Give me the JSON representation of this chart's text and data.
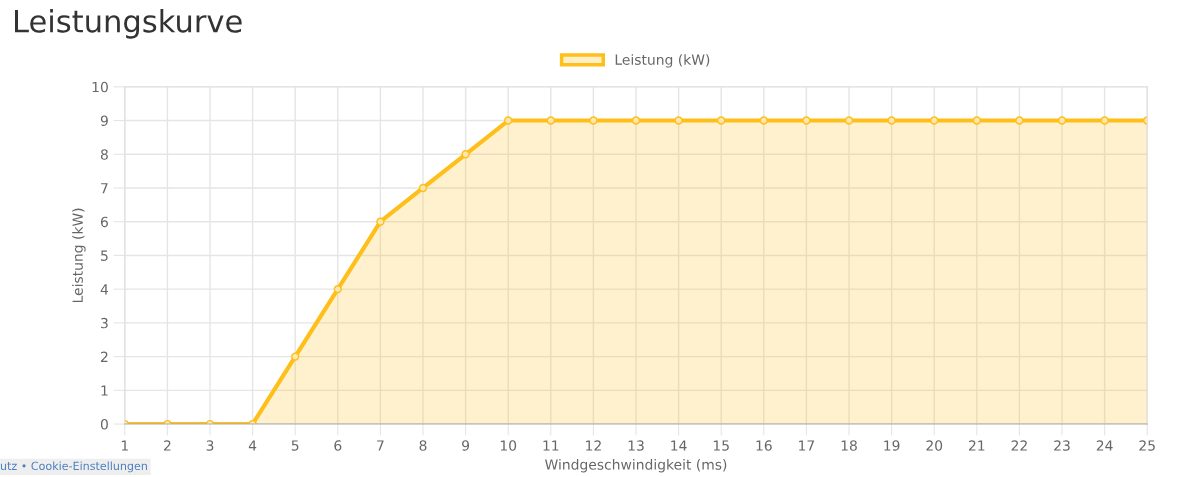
{
  "chart_data": {
    "type": "area",
    "title": "Leistungskurve",
    "xlabel": "Windgeschwindigkeit (ms)",
    "ylabel": "Leistung (kW)",
    "categories": [
      "1",
      "2",
      "3",
      "4",
      "5",
      "6",
      "7",
      "8",
      "9",
      "10",
      "11",
      "12",
      "13",
      "14",
      "15",
      "16",
      "17",
      "18",
      "19",
      "20",
      "21",
      "22",
      "23",
      "24",
      "25"
    ],
    "series": [
      {
        "name": "Leistung (kW)",
        "color": "#ffbf1a",
        "values": [
          0,
          0,
          0,
          0,
          2,
          4,
          6,
          7,
          8,
          9,
          9,
          9,
          9,
          9,
          9,
          9,
          9,
          9,
          9,
          9,
          9,
          9,
          9,
          9,
          9
        ]
      }
    ],
    "ylim": [
      0,
      10
    ],
    "yticks": [
      0,
      1,
      2,
      3,
      4,
      5,
      6,
      7,
      8,
      9,
      10
    ],
    "grid": true,
    "legend": "top",
    "marker": "circle",
    "line_style": "solid",
    "annotations": [
      "utz • Cookie-Einstellungen"
    ]
  }
}
